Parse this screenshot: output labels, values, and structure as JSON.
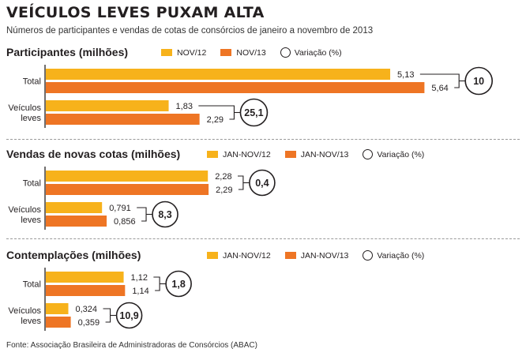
{
  "title": "VEÍCULOS LEVES PUXAM ALTA",
  "subtitle": "Números de participantes e vendas de cotas de consórcios de janeiro a novembro de 2013",
  "source": "Fonte: Associação Brasileira de Administradoras de Consórcios (ABAC)",
  "colors": {
    "series1": "#f7b21b",
    "series2": "#ee7524",
    "axis": "#231f20"
  },
  "chart_data": [
    {
      "type": "bar",
      "title": "Participantes  (milhões)",
      "categories": [
        "Total",
        "Veículos leves"
      ],
      "category_lines": [
        [
          "Total"
        ],
        [
          "Veículos",
          "leves"
        ]
      ],
      "series": [
        {
          "name": "NOV/12",
          "values": [
            5.13,
            1.83
          ],
          "labels": [
            "5,13",
            "1,83"
          ]
        },
        {
          "name": "NOV/13",
          "values": [
            5.64,
            2.29
          ],
          "labels": [
            "5,64",
            "2,29"
          ]
        }
      ],
      "variation_label": "Variação (%)",
      "variation": [
        "10",
        "25,1"
      ]
    },
    {
      "type": "bar",
      "title": "Vendas de novas cotas (milhões)",
      "categories": [
        "Total",
        "Veículos leves"
      ],
      "category_lines": [
        [
          "Total"
        ],
        [
          "Veículos",
          "leves"
        ]
      ],
      "series": [
        {
          "name": "JAN-NOV/12",
          "values": [
            2.28,
            0.791
          ],
          "labels": [
            "2,28",
            "0,791"
          ]
        },
        {
          "name": "JAN-NOV/13",
          "values": [
            2.29,
            0.856
          ],
          "labels": [
            "2,29",
            "0,856"
          ]
        }
      ],
      "variation_label": "Variação (%)",
      "variation": [
        "0,4",
        "8,3"
      ]
    },
    {
      "type": "bar",
      "title": "Contemplações (milhões)",
      "categories": [
        "Total",
        "Veículos leves"
      ],
      "category_lines": [
        [
          "Total"
        ],
        [
          "Veículos",
          "leves"
        ]
      ],
      "series": [
        {
          "name": "JAN-NOV/12",
          "values": [
            1.12,
            0.324
          ],
          "labels": [
            "1,12",
            "0,324"
          ]
        },
        {
          "name": "JAN-NOV/13",
          "values": [
            1.14,
            0.359
          ],
          "labels": [
            "1,14",
            "0,359"
          ]
        }
      ],
      "variation_label": "Variação (%)",
      "variation": [
        "1,8",
        "10,9"
      ]
    }
  ]
}
